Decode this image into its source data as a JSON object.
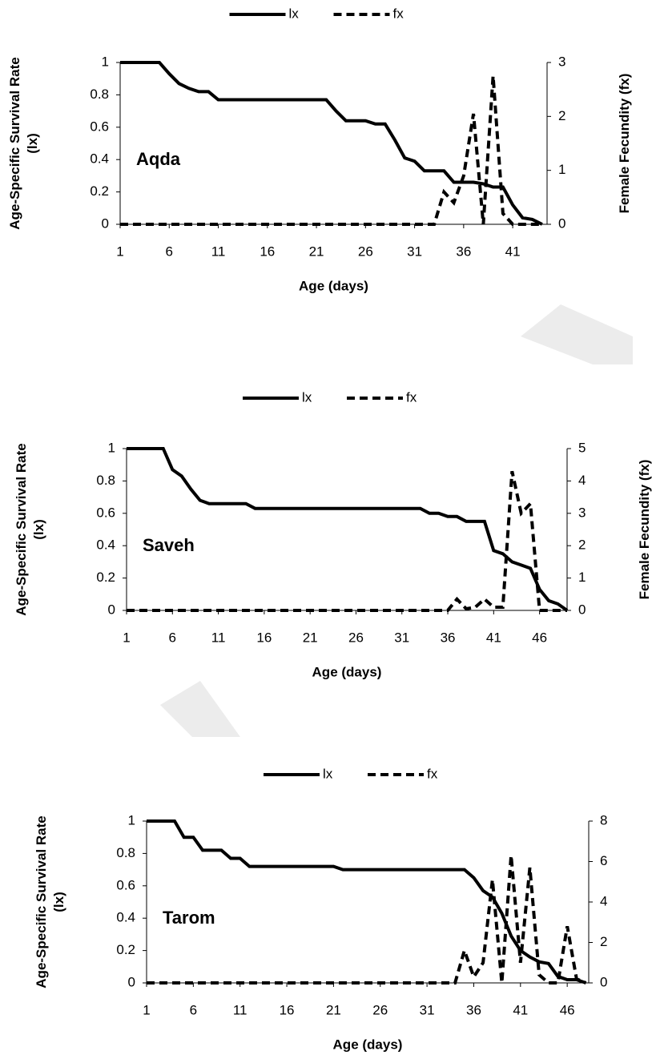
{
  "chart_data": [
    {
      "type": "line",
      "annotation": "Aqda",
      "xlabel": "Age (days)",
      "ylabel": "Age-Specific Survival Rate (lx)",
      "y2label": "Female Fecundity (fx)",
      "x": [
        1,
        2,
        3,
        4,
        5,
        6,
        7,
        8,
        9,
        10,
        11,
        12,
        13,
        14,
        15,
        16,
        17,
        18,
        19,
        20,
        21,
        22,
        23,
        24,
        25,
        26,
        27,
        28,
        29,
        30,
        31,
        32,
        33,
        34,
        35,
        36,
        37,
        38,
        39,
        40,
        41,
        42,
        43,
        44
      ],
      "series": [
        {
          "name": "lx",
          "color": "#000000",
          "dashed": false,
          "values": [
            1,
            1,
            1,
            1,
            1,
            0.93,
            0.87,
            0.84,
            0.82,
            0.82,
            0.77,
            0.77,
            0.77,
            0.77,
            0.77,
            0.77,
            0.77,
            0.77,
            0.77,
            0.77,
            0.77,
            0.77,
            0.7,
            0.64,
            0.64,
            0.64,
            0.62,
            0.62,
            0.52,
            0.41,
            0.39,
            0.33,
            0.33,
            0.33,
            0.26,
            0.26,
            0.26,
            0.25,
            0.23,
            0.23,
            0.12,
            0.04,
            0.03,
            0
          ]
        },
        {
          "name": "fx",
          "color": "#000000",
          "dashed": true,
          "axis": "y2",
          "values": [
            0,
            0,
            0,
            0,
            0,
            0,
            0,
            0,
            0,
            0,
            0,
            0,
            0,
            0,
            0,
            0,
            0,
            0,
            0,
            0,
            0,
            0,
            0,
            0,
            0,
            0,
            0,
            0,
            0,
            0,
            0,
            0,
            0,
            0.6,
            0.4,
            0.9,
            2.05,
            0,
            2.75,
            0.2,
            0,
            0,
            0,
            0
          ]
        }
      ],
      "xlim": [
        1,
        44.5
      ],
      "xticks": [
        1,
        6,
        11,
        16,
        21,
        26,
        31,
        36,
        41
      ],
      "ylim": [
        0,
        1
      ],
      "yticks": [
        0,
        0.2,
        0.4,
        0.6,
        0.8,
        1
      ],
      "y2lim": [
        0,
        3
      ],
      "y2ticks": [
        0,
        1,
        2,
        3
      ],
      "grid": false,
      "legend": "top"
    },
    {
      "type": "line",
      "annotation": "Saveh",
      "xlabel": "Age (days)",
      "ylabel": "Age-Specific Survival Rate (lx)",
      "y2label": "Female Fecundity (fx)",
      "x": [
        1,
        2,
        3,
        4,
        5,
        6,
        7,
        8,
        9,
        10,
        11,
        12,
        13,
        14,
        15,
        16,
        17,
        18,
        19,
        20,
        21,
        22,
        23,
        24,
        25,
        26,
        27,
        28,
        29,
        30,
        31,
        32,
        33,
        34,
        35,
        36,
        37,
        38,
        39,
        40,
        41,
        42,
        43,
        44,
        45,
        46,
        47,
        48,
        49
      ],
      "series": [
        {
          "name": "lx",
          "color": "#000000",
          "dashed": false,
          "values": [
            1,
            1,
            1,
            1,
            1,
            0.87,
            0.83,
            0.75,
            0.68,
            0.66,
            0.66,
            0.66,
            0.66,
            0.66,
            0.63,
            0.63,
            0.63,
            0.63,
            0.63,
            0.63,
            0.63,
            0.63,
            0.63,
            0.63,
            0.63,
            0.63,
            0.63,
            0.63,
            0.63,
            0.63,
            0.63,
            0.63,
            0.63,
            0.6,
            0.6,
            0.58,
            0.58,
            0.55,
            0.55,
            0.55,
            0.37,
            0.35,
            0.3,
            0.28,
            0.26,
            0.13,
            0.06,
            0.04,
            0
          ]
        },
        {
          "name": "fx",
          "color": "#000000",
          "dashed": true,
          "axis": "y2",
          "values": [
            0,
            0,
            0,
            0,
            0,
            0,
            0,
            0,
            0,
            0,
            0,
            0,
            0,
            0,
            0,
            0,
            0,
            0,
            0,
            0,
            0,
            0,
            0,
            0,
            0,
            0,
            0,
            0,
            0,
            0,
            0,
            0,
            0,
            0,
            0,
            0,
            0.35,
            0.05,
            0.1,
            0.35,
            0.1,
            0.1,
            4.3,
            3.0,
            3.3,
            0,
            0,
            0,
            0
          ]
        }
      ],
      "xlim": [
        1,
        49
      ],
      "xticks": [
        1,
        6,
        11,
        16,
        21,
        26,
        31,
        36,
        41,
        46
      ],
      "ylim": [
        0,
        1
      ],
      "yticks": [
        0,
        0.2,
        0.4,
        0.6,
        0.8,
        1
      ],
      "y2lim": [
        0,
        5
      ],
      "y2ticks": [
        0,
        1,
        2,
        3,
        4,
        5
      ],
      "grid": false,
      "legend": "top"
    },
    {
      "type": "line",
      "annotation": "Tarom",
      "xlabel": "Age (days)",
      "ylabel": "Age-Specific Survival Rate (lx)",
      "y2label": "Female Fecundity (fx)",
      "x": [
        1,
        2,
        3,
        4,
        5,
        6,
        7,
        8,
        9,
        10,
        11,
        12,
        13,
        14,
        15,
        16,
        17,
        18,
        19,
        20,
        21,
        22,
        23,
        24,
        25,
        26,
        27,
        28,
        29,
        30,
        31,
        32,
        33,
        34,
        35,
        36,
        37,
        38,
        39,
        40,
        41,
        42,
        43,
        44,
        45,
        46,
        47,
        48
      ],
      "series": [
        {
          "name": "lx",
          "color": "#000000",
          "dashed": false,
          "values": [
            1,
            1,
            1,
            1,
            0.9,
            0.9,
            0.82,
            0.82,
            0.82,
            0.77,
            0.77,
            0.72,
            0.72,
            0.72,
            0.72,
            0.72,
            0.72,
            0.72,
            0.72,
            0.72,
            0.72,
            0.7,
            0.7,
            0.7,
            0.7,
            0.7,
            0.7,
            0.7,
            0.7,
            0.7,
            0.7,
            0.7,
            0.7,
            0.7,
            0.7,
            0.65,
            0.57,
            0.53,
            0.43,
            0.29,
            0.2,
            0.16,
            0.13,
            0.12,
            0.04,
            0.02,
            0.02,
            0
          ]
        },
        {
          "name": "fx",
          "color": "#000000",
          "dashed": true,
          "axis": "y2",
          "values": [
            0,
            0,
            0,
            0,
            0,
            0,
            0,
            0,
            0,
            0,
            0,
            0,
            0,
            0,
            0,
            0,
            0,
            0,
            0,
            0,
            0,
            0,
            0,
            0,
            0,
            0,
            0,
            0,
            0,
            0,
            0,
            0,
            0,
            0,
            1.6,
            0.3,
            1.0,
            5.1,
            0,
            6.3,
            1.0,
            5.7,
            0.4,
            0,
            0,
            2.8,
            0.2,
            0
          ]
        }
      ],
      "xlim": [
        1,
        48.3
      ],
      "xticks": [
        1,
        6,
        11,
        16,
        21,
        26,
        31,
        36,
        41,
        46
      ],
      "ylim": [
        0,
        1
      ],
      "yticks": [
        0,
        0.2,
        0.4,
        0.6,
        0.8,
        1
      ],
      "y2lim": [
        0,
        8
      ],
      "y2ticks": [
        0,
        2,
        4,
        6,
        8
      ],
      "grid": false,
      "legend": "top"
    }
  ]
}
